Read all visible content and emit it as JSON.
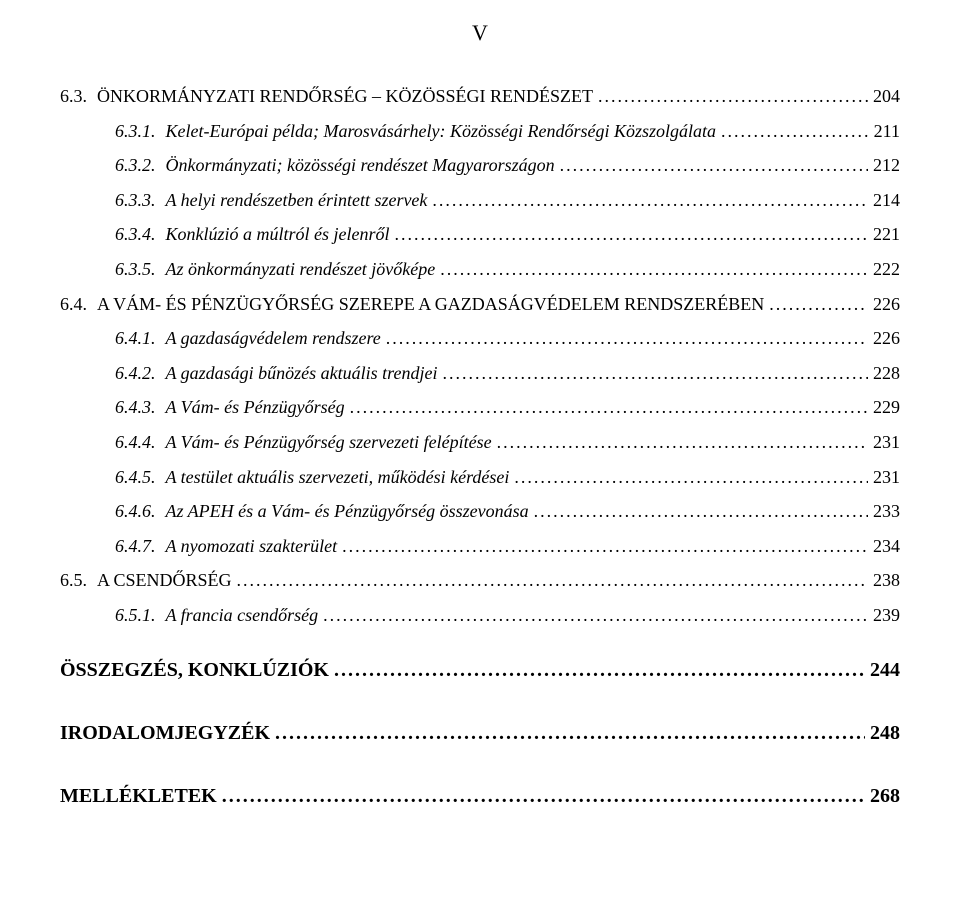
{
  "page_label": "V",
  "leader_dots": "..................................................................................................................................................................",
  "font": {
    "family": "Times New Roman",
    "body_size_pt": 14,
    "header_size_pt": 16,
    "color": "#000000"
  },
  "background_color": "#ffffff",
  "entries": [
    {
      "indent": 1,
      "num": "6.3.",
      "title": "ÖNKORMÁNYZATI RENDŐRSÉG – KÖZÖSSÉGI RENDÉSZET",
      "page": "204",
      "style": "smallcaps"
    },
    {
      "indent": 2,
      "num": "6.3.1.",
      "title": "Kelet-Európai példa; Marosvásárhely: Közösségi Rendőrségi Közszolgálata",
      "page": "211",
      "style": "italic"
    },
    {
      "indent": 2,
      "num": "6.3.2.",
      "title": "Önkormányzati; közösségi rendészet Magyarországon",
      "page": "212",
      "style": "italic"
    },
    {
      "indent": 2,
      "num": "6.3.3.",
      "title": "A helyi rendészetben érintett szervek",
      "page": "214",
      "style": "italic"
    },
    {
      "indent": 2,
      "num": "6.3.4.",
      "title": "Konklúzió a múltról és jelenről",
      "page": "221",
      "style": "italic"
    },
    {
      "indent": 2,
      "num": "6.3.5.",
      "title": "Az önkormányzati rendészet jövőképe",
      "page": "222",
      "style": "italic"
    },
    {
      "indent": 1,
      "num": "6.4.",
      "title": "A VÁM- ÉS PÉNZÜGYŐRSÉG SZEREPE A GAZDASÁGVÉDELEM RENDSZERÉBEN",
      "page": "226",
      "style": "smallcaps"
    },
    {
      "indent": 2,
      "num": "6.4.1.",
      "title": "A gazdaságvédelem rendszere",
      "page": "226",
      "style": "italic"
    },
    {
      "indent": 2,
      "num": "6.4.2.",
      "title": "A gazdasági bűnözés aktuális trendjei",
      "page": "228",
      "style": "italic"
    },
    {
      "indent": 2,
      "num": "6.4.3.",
      "title": "A Vám- és Pénzügyőrség",
      "page": "229",
      "style": "italic"
    },
    {
      "indent": 2,
      "num": "6.4.4.",
      "title": "A Vám- és Pénzügyőrség szervezeti felépítése",
      "page": "231",
      "style": "italic"
    },
    {
      "indent": 2,
      "num": "6.4.5.",
      "title": "A testület aktuális szervezeti, működési kérdései",
      "page": "231",
      "style": "italic"
    },
    {
      "indent": 2,
      "num": "6.4.6.",
      "title": "Az APEH  és a Vám- és Pénzügyőrség összevonása",
      "page": "233",
      "style": "italic"
    },
    {
      "indent": 2,
      "num": "6.4.7.",
      "title": "A nyomozati szakterület",
      "page": "234",
      "style": "italic"
    },
    {
      "indent": 1,
      "num": "6.5.",
      "title": "A CSENDŐRSÉG",
      "page": "238",
      "style": "smallcaps"
    },
    {
      "indent": 2,
      "num": "6.5.1.",
      "title": "A francia csendőrség",
      "page": "239",
      "style": "italic"
    }
  ],
  "bottom_entries": [
    {
      "title": "ÖSSZEGZÉS, KONKLÚZIÓK",
      "page": "244"
    },
    {
      "title": "IRODALOMJEGYZÉK",
      "page": "248"
    },
    {
      "title": "MELLÉKLETEK",
      "page": "268"
    }
  ]
}
